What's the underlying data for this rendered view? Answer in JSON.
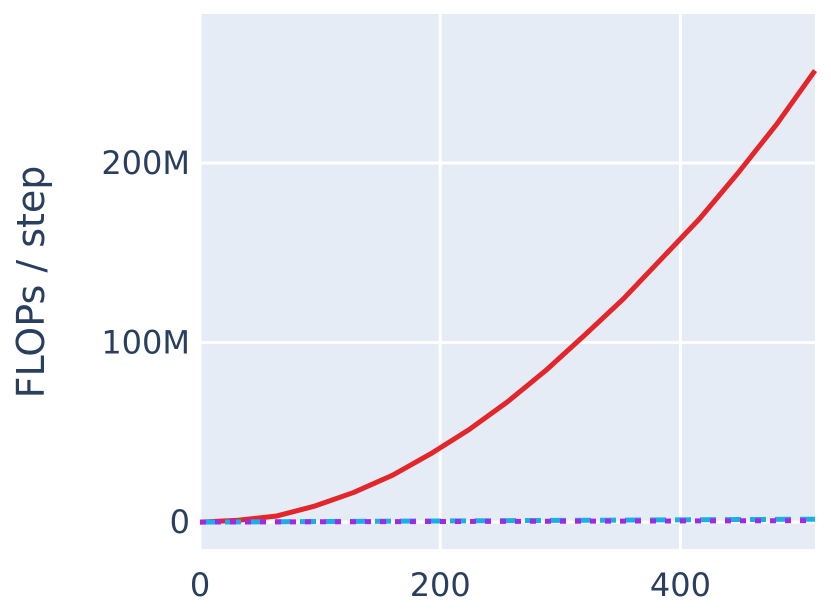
{
  "chart_data": {
    "type": "line",
    "title": "",
    "xlabel": "",
    "ylabel": "FLOPs / step",
    "xlim": [
      0,
      512
    ],
    "ylim": [
      -15000000,
      283000000
    ],
    "x_ticks": [
      {
        "value": 0,
        "label": "0"
      },
      {
        "value": 200,
        "label": "200"
      },
      {
        "value": 400,
        "label": "400"
      }
    ],
    "y_ticks": [
      {
        "value": 0,
        "label": "0"
      },
      {
        "value": 100000000,
        "label": "100M"
      },
      {
        "value": 200000000,
        "label": "200M"
      }
    ],
    "grid": true,
    "legend": "none",
    "plot_background": "#e5ecf6",
    "series": [
      {
        "color": "#e3262a",
        "dash": "solid",
        "width": 5,
        "x": [
          0,
          32,
          64,
          96,
          128,
          160,
          192,
          224,
          256,
          288,
          320,
          352,
          384,
          416,
          448,
          480,
          512
        ],
        "y": [
          0,
          1000000,
          3400000,
          9000000,
          16500000,
          26000000,
          38000000,
          51500000,
          67000000,
          84500000,
          104000000,
          124000000,
          146500000,
          169000000,
          194500000,
          221500000,
          251500000
        ]
      },
      {
        "color": "#19b0e5",
        "dash": "dash",
        "width": 5,
        "x": [
          0,
          64,
          128,
          192,
          256,
          320,
          384,
          448,
          512
        ],
        "y": [
          0,
          200000,
          400000,
          600000,
          800000,
          1000000,
          1200000,
          1400000,
          1600000
        ]
      },
      {
        "color": "#a527e6",
        "dash": "dot",
        "width": 5,
        "x": [
          0,
          64,
          128,
          192,
          256,
          320,
          384,
          448,
          512
        ],
        "y": [
          0,
          100000,
          200000,
          300000,
          400000,
          500000,
          600000,
          700000,
          800000
        ]
      }
    ]
  }
}
